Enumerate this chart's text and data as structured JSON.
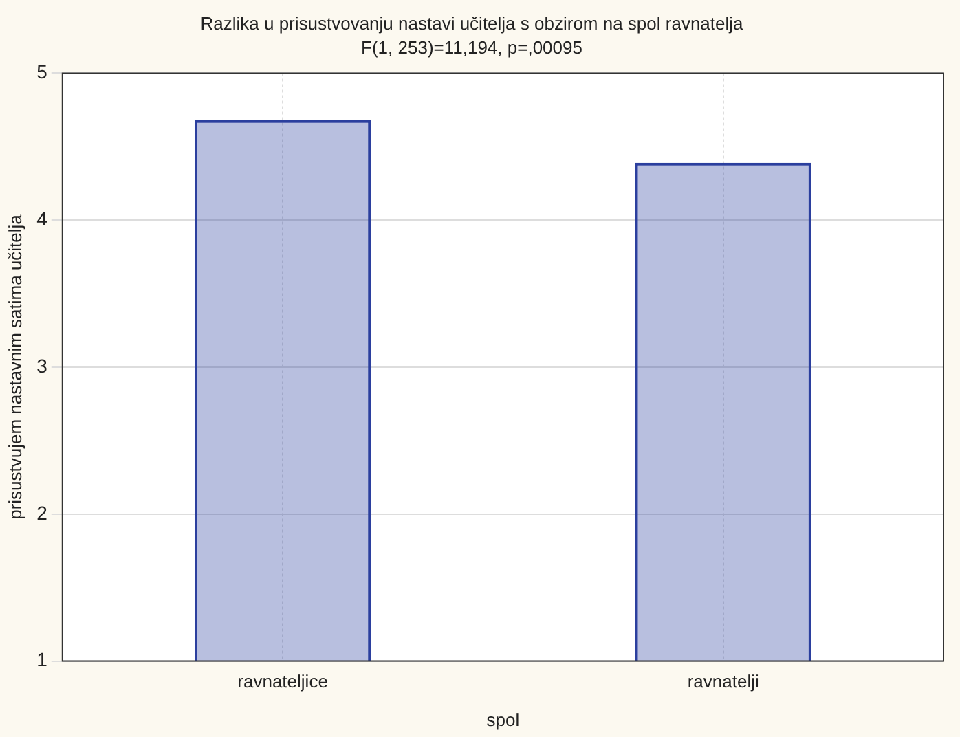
{
  "chart_data": {
    "type": "bar",
    "title": "Razlika u prisustvovanju nastavi učitelja s obzirom na spol ravnatelja",
    "subtitle": "F(1, 253)=11,194, p=,00095",
    "xlabel": "spol",
    "ylabel": "prisustvujem nastavnim satima učitelja",
    "categories": [
      "ravnateljice",
      "ravnatelji"
    ],
    "values": [
      4.68,
      4.39
    ],
    "color": "#2b3f9e",
    "ylim": [
      1,
      5
    ],
    "yticks": [
      1,
      2,
      3,
      4,
      5
    ],
    "grid": true
  }
}
